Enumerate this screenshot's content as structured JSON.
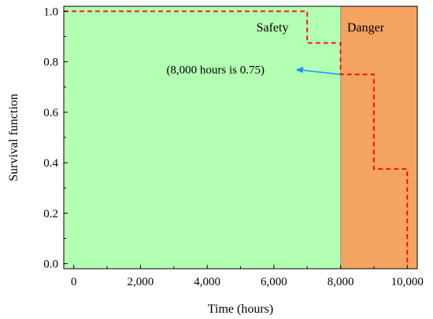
{
  "chart_data": {
    "type": "line",
    "title": "",
    "xlabel": "Time (hours)",
    "ylabel": "Survival function",
    "xlim": [
      -300,
      10300
    ],
    "ylim": [
      -0.02,
      1.02
    ],
    "x_ticks": [
      0,
      2000,
      4000,
      6000,
      8000,
      10000
    ],
    "x_tick_labels": [
      "0",
      "2,000",
      "4,000",
      "6,000",
      "8,000",
      "10,000"
    ],
    "x_minor_ticks": [
      1000,
      3000,
      5000,
      7000,
      9000
    ],
    "y_ticks": [
      0.0,
      0.2,
      0.4,
      0.6,
      0.8,
      1.0
    ],
    "y_tick_labels": [
      "0.0",
      "0.2",
      "0.4",
      "0.6",
      "0.8",
      "1.0"
    ],
    "y_minor_ticks": [
      0.1,
      0.3,
      0.5,
      0.7,
      0.9
    ],
    "grid": false,
    "regions": [
      {
        "label": "Safety",
        "x_start": -300,
        "x_end": 8000,
        "color": "#b3ffb3"
      },
      {
        "label": "Danger",
        "x_start": 8000,
        "x_end": 10300,
        "color": "#f4a460"
      }
    ],
    "series": [
      {
        "style": "dashed-step",
        "color": "#ff0000",
        "points": [
          [
            -300,
            1.0
          ],
          [
            7000,
            1.0
          ],
          [
            7000,
            0.875
          ],
          [
            8000,
            0.875
          ],
          [
            8000,
            0.75
          ],
          [
            9000,
            0.75
          ],
          [
            9000,
            0.375
          ],
          [
            10000,
            0.375
          ],
          [
            10000,
            0.0
          ]
        ]
      }
    ],
    "annotations": [
      {
        "text": "(8,000 hours is 0.75)",
        "text_x": 4250,
        "text_y": 0.75,
        "arrow_from": [
          8000,
          0.75
        ],
        "arrow_to": [
          6650,
          0.768
        ],
        "arrow_color": "#1e90ff"
      }
    ]
  }
}
